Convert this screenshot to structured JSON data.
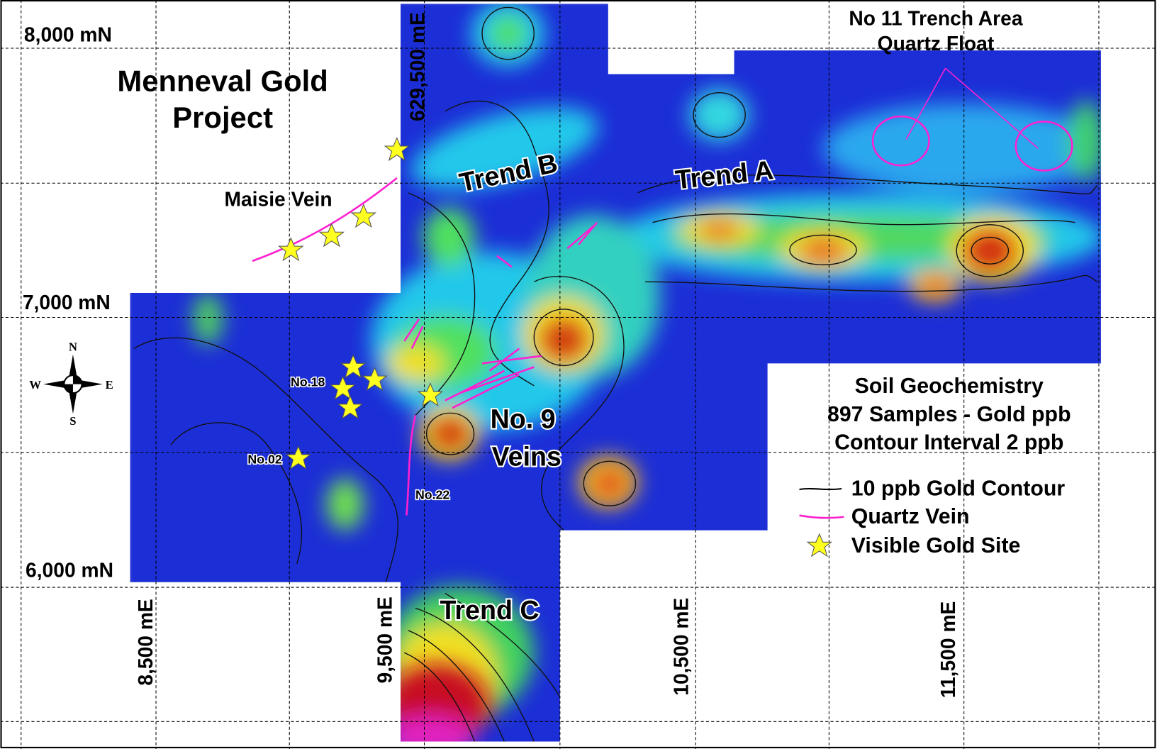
{
  "header": {
    "title_lines": [
      "Menneval Gold",
      "Project"
    ]
  },
  "grid_labels": {
    "northing": [
      "8,000 mN",
      "7,000 mN",
      "6,000 mN"
    ],
    "easting": [
      "629,500 mE",
      "8,500 mE",
      "9,500 mE",
      "10,500 mE",
      "11,500 mE"
    ]
  },
  "compass": {
    "north": "N",
    "south": "S",
    "west": "W",
    "east": "E"
  },
  "features": {
    "trend_a": "Trend A",
    "trend_b": "Trend B",
    "trend_c": "Trend C",
    "veins_lines": [
      "No. 9",
      "Veins"
    ],
    "maisie": "Maisie Vein",
    "trench_lines": [
      "No 11 Trench Area",
      "Quartz Float"
    ],
    "sites": [
      "No.18",
      "No.02",
      "No.22"
    ]
  },
  "info_lines": [
    "Soil Geochemistry",
    "897 Samples - Gold ppb",
    "Contour Interval 2 ppb"
  ],
  "legend": [
    "10 ppb Gold Contour",
    "Quartz Vein",
    "Visible Gold Site"
  ]
}
